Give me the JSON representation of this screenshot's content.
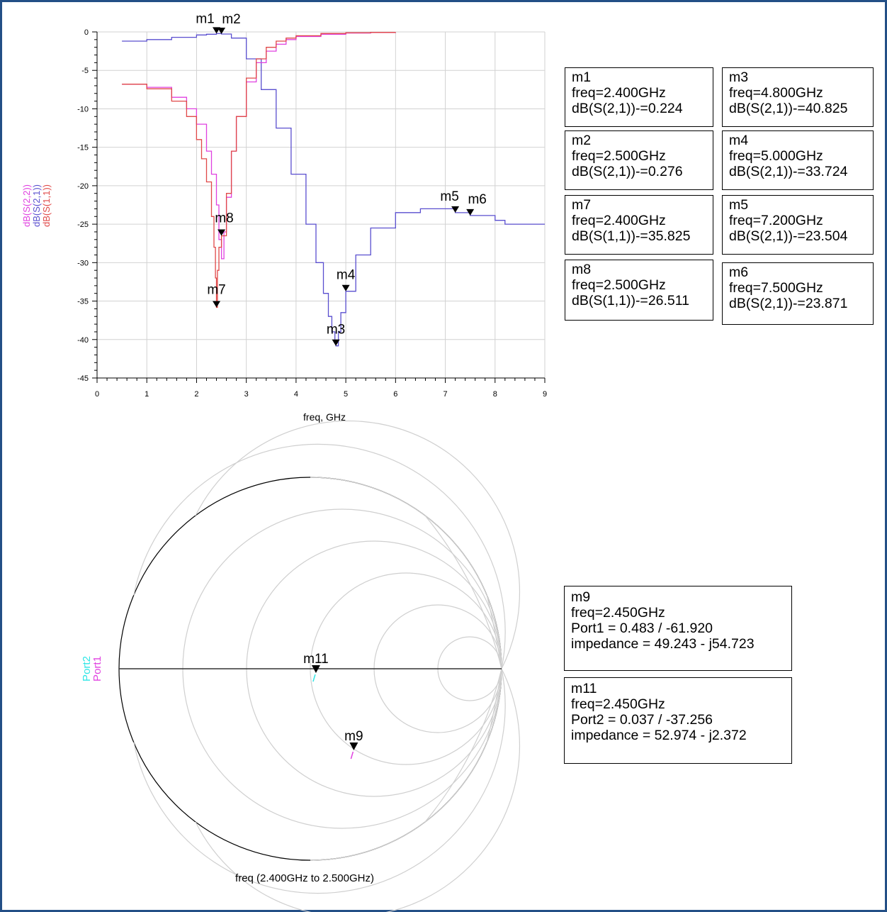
{
  "chart_data": [
    {
      "type": "line",
      "xlabel": "freq, GHz",
      "ylabels": [
        "dB(S(2,2))",
        "dB(S(2,1))",
        "dB(S(1,1))"
      ],
      "xlim": [
        0,
        9
      ],
      "ylim": [
        -45,
        0
      ],
      "x_ticks": [
        "0",
        "1",
        "2",
        "3",
        "4",
        "5",
        "6",
        "7",
        "8",
        "9"
      ],
      "y_ticks": [
        "0",
        "-5",
        "-10",
        "-15",
        "-20",
        "-25",
        "-30",
        "-35",
        "-40",
        "-45"
      ],
      "grid": true,
      "colors": {
        "s22": "#e040e0",
        "s21": "#5a4fcf",
        "s11": "#e04848"
      },
      "series": [
        {
          "name": "dB(S(2,1))",
          "color": "#5a4fcf",
          "x": [
            0.5,
            1.0,
            1.5,
            2.0,
            2.2,
            2.4,
            2.5,
            2.7,
            3.0,
            3.3,
            3.6,
            3.9,
            4.2,
            4.4,
            4.55,
            4.65,
            4.72,
            4.78,
            4.8,
            4.85,
            4.9,
            5.0,
            5.2,
            5.5,
            6.0,
            6.5,
            7.0,
            7.2,
            7.5,
            8.0,
            8.2,
            8.5,
            9.0
          ],
          "y": [
            -1.2,
            -1.0,
            -0.7,
            -0.4,
            -0.3,
            -0.224,
            -0.276,
            -0.8,
            -3.5,
            -7.5,
            -12.5,
            -18.5,
            -25.0,
            -30.0,
            -34.0,
            -37.0,
            -39.0,
            -40.5,
            -40.825,
            -39.0,
            -36.5,
            -33.724,
            -29.0,
            -25.5,
            -23.5,
            -23.0,
            -23.0,
            -23.504,
            -23.871,
            -24.5,
            -25.0,
            -25.0,
            -25.0
          ]
        },
        {
          "name": "dB(S(2,2))",
          "color": "#e040e0",
          "x": [
            0.5,
            1.0,
            1.5,
            1.8,
            2.0,
            2.2,
            2.3,
            2.4,
            2.45,
            2.5,
            2.55,
            2.6,
            2.7,
            2.8,
            3.0,
            3.2,
            3.4,
            3.6,
            3.8,
            4.0,
            4.5,
            5.0,
            5.5,
            6.0
          ],
          "y": [
            -6.8,
            -7.2,
            -8.5,
            -10.0,
            -12.0,
            -15.5,
            -18.5,
            -22.5,
            -27.0,
            -29.5,
            -26.0,
            -21.5,
            -15.5,
            -11.0,
            -6.5,
            -4.0,
            -2.5,
            -1.6,
            -1.0,
            -0.6,
            -0.3,
            -0.15,
            -0.08,
            -0.05
          ]
        },
        {
          "name": "dB(S(1,1))",
          "color": "#e04848",
          "x": [
            0.5,
            1.0,
            1.5,
            1.8,
            2.0,
            2.1,
            2.2,
            2.3,
            2.35,
            2.38,
            2.4,
            2.42,
            2.45,
            2.5,
            2.6,
            2.7,
            2.8,
            3.0,
            3.2,
            3.4,
            3.6,
            3.8,
            4.0,
            4.5,
            5.0,
            5.5,
            6.0
          ],
          "y": [
            -6.8,
            -7.4,
            -9.0,
            -11.0,
            -14.0,
            -16.5,
            -19.5,
            -24.0,
            -28.0,
            -32.0,
            -35.825,
            -31.0,
            -28.0,
            -26.511,
            -21.0,
            -15.5,
            -11.0,
            -6.0,
            -3.5,
            -2.0,
            -1.2,
            -0.8,
            -0.5,
            -0.2,
            -0.1,
            -0.06,
            -0.05
          ]
        }
      ],
      "markers": [
        {
          "label": "m1",
          "x": 2.4,
          "y": -0.224,
          "series": "dB(S(2,1))"
        },
        {
          "label": "m2",
          "x": 2.5,
          "y": -0.276,
          "series": "dB(S(2,1))"
        },
        {
          "label": "m3",
          "x": 4.8,
          "y": -40.825,
          "series": "dB(S(2,1))"
        },
        {
          "label": "m4",
          "x": 5.0,
          "y": -33.724,
          "series": "dB(S(2,1))"
        },
        {
          "label": "m5",
          "x": 7.2,
          "y": -23.504,
          "series": "dB(S(2,1))"
        },
        {
          "label": "m6",
          "x": 7.5,
          "y": -23.871,
          "series": "dB(S(2,1))"
        },
        {
          "label": "m7",
          "x": 2.4,
          "y": -35.825,
          "series": "dB(S(1,1))"
        },
        {
          "label": "m8",
          "x": 2.5,
          "y": -26.511,
          "series": "dB(S(1,1))"
        }
      ]
    },
    {
      "type": "smith",
      "xlabel": "freq (2.400GHz to 2.500GHz)",
      "trace_labels": [
        "Port2",
        "Port1"
      ],
      "trace_colors": {
        "Port2": "#2ee6e6",
        "Port1": "#e040e0"
      },
      "markers": [
        {
          "label": "m11",
          "impedance_r": 52.974,
          "impedance_x": -2.372,
          "trace": "Port2"
        },
        {
          "label": "m9",
          "impedance_r": 49.243,
          "impedance_x": -54.723,
          "trace": "Port1"
        }
      ]
    }
  ],
  "marker_boxes": [
    {
      "lines": [
        "m1",
        "freq=2.400GHz",
        "dB(S(2,1))-=0.224"
      ]
    },
    {
      "lines": [
        "m3",
        "freq=4.800GHz",
        "dB(S(2,1))-=40.825"
      ]
    },
    {
      "lines": [
        "m2",
        "freq=2.500GHz",
        "dB(S(2,1))-=0.276"
      ]
    },
    {
      "lines": [
        "m4",
        "freq=5.000GHz",
        "dB(S(2,1))-=33.724"
      ]
    },
    {
      "lines": [
        "m7",
        "freq=2.400GHz",
        "dB(S(1,1))-=35.825"
      ]
    },
    {
      "lines": [
        "m5",
        "freq=7.200GHz",
        "dB(S(2,1))-=23.504"
      ]
    },
    {
      "lines": [
        "m8",
        "freq=2.500GHz",
        "dB(S(1,1))-=26.511"
      ]
    },
    {
      "lines": [
        "m6",
        "freq=7.500GHz",
        "dB(S(2,1))-=23.871"
      ]
    },
    {
      "lines": [
        "m9",
        "freq=2.450GHz",
        "Port1 = 0.483 / -61.920",
        "impedance = 49.243 - j54.723"
      ]
    },
    {
      "lines": [
        "m11",
        "freq=2.450GHz",
        "Port2 = 0.037 / -37.256",
        "impedance = 52.974 - j2.372"
      ]
    }
  ]
}
